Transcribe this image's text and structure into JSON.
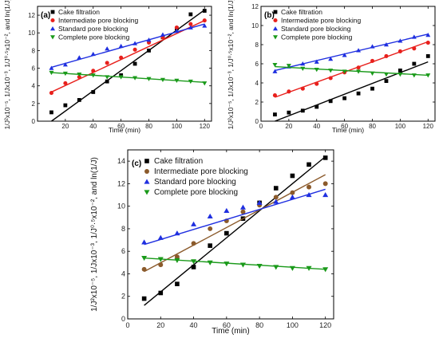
{
  "chart_data": [
    {
      "panel_label": "(a)",
      "type": "scatter",
      "xlabel": "Time (min)",
      "ylabel": "1/J²x10⁻⁵, 1/Jx10⁻³, 1/J⁰·⁵x10⁻², and ln(1/J)",
      "xlim": [
        0,
        125
      ],
      "ylim": [
        0,
        13
      ],
      "xticks": [
        "20",
        "40",
        "60",
        "80",
        "100",
        "120"
      ],
      "yticks": [
        "0",
        "2",
        "4",
        "6",
        "8",
        "10",
        "12"
      ],
      "x": [
        10,
        20,
        30,
        40,
        50,
        60,
        70,
        80,
        90,
        100,
        110,
        120
      ],
      "series": [
        {
          "name": "Cake filtration",
          "marker": "square",
          "color": "#000000",
          "values": [
            1.0,
            1.8,
            2.4,
            3.3,
            4.5,
            5.2,
            6.5,
            8.0,
            9.5,
            10.5,
            12.1,
            12.5
          ],
          "fit": [
            0.0,
            12.6
          ]
        },
        {
          "name": "Intermediate pore blocking",
          "marker": "circle",
          "color": "#e8201c",
          "values": [
            3.2,
            4.3,
            5.0,
            5.7,
            6.6,
            7.2,
            8.1,
            8.9,
            9.5,
            10.6,
            11.0,
            11.4
          ],
          "fit": [
            3.3,
            11.4
          ]
        },
        {
          "name": "Standard pore blocking",
          "marker": "triangle-up",
          "color": "#1f2fe0",
          "values": [
            6.0,
            6.4,
            7.2,
            7.6,
            8.2,
            8.5,
            8.8,
            9.2,
            9.8,
            10.2,
            10.6,
            10.8
          ],
          "fit": [
            6.1,
            11.0
          ]
        },
        {
          "name": "Complete pore blocking",
          "marker": "triangle-down",
          "color": "#1a9a1a",
          "values": [
            5.5,
            5.4,
            5.3,
            5.2,
            5.0,
            5.0,
            4.9,
            4.8,
            4.7,
            4.6,
            4.5,
            4.3
          ],
          "fit": [
            5.5,
            4.4
          ]
        }
      ]
    },
    {
      "panel_label": "(b)",
      "type": "scatter",
      "xlabel": "Time (min)",
      "ylabel": "1/J²x10⁻⁵, 1/Jx10⁻³, 1/J⁰·⁵x10⁻², and ln(1/J)",
      "xlim": [
        0,
        125
      ],
      "ylim": [
        0,
        12
      ],
      "xticks": [
        "0",
        "20",
        "40",
        "60",
        "80",
        "100",
        "120"
      ],
      "yticks": [
        "0",
        "2",
        "4",
        "6",
        "8",
        "10",
        "12"
      ],
      "x": [
        10,
        20,
        30,
        40,
        50,
        60,
        70,
        80,
        90,
        100,
        110,
        120
      ],
      "series": [
        {
          "name": "Cake filtration",
          "marker": "square",
          "color": "#000000",
          "values": [
            0.7,
            0.9,
            1.1,
            1.5,
            2.1,
            2.4,
            2.9,
            3.4,
            4.2,
            5.3,
            6.0,
            6.8
          ],
          "fit": [
            0.0,
            6.2
          ]
        },
        {
          "name": "Intermediate pore blocking",
          "marker": "circle",
          "color": "#e8201c",
          "values": [
            2.7,
            3.1,
            3.4,
            3.9,
            4.5,
            5.1,
            5.6,
            6.3,
            6.8,
            7.3,
            7.6,
            8.2
          ],
          "fit": [
            2.5,
            8.3
          ]
        },
        {
          "name": "Standard pore blocking",
          "marker": "triangle-up",
          "color": "#1f2fe0",
          "values": [
            5.2,
            5.7,
            6.0,
            6.2,
            6.5,
            6.9,
            7.4,
            7.8,
            8.0,
            8.4,
            8.8,
            9.0
          ],
          "fit": [
            5.3,
            9.1
          ]
        },
        {
          "name": "Complete pore blocking",
          "marker": "triangle-down",
          "color": "#1a9a1a",
          "values": [
            5.9,
            5.8,
            5.5,
            5.4,
            5.3,
            5.2,
            5.2,
            5.0,
            4.9,
            4.9,
            4.8,
            4.8
          ],
          "fit": [
            5.7,
            4.8
          ]
        }
      ]
    },
    {
      "panel_label": "(c)",
      "type": "scatter",
      "xlabel": "Time (min)",
      "ylabel": "1/J²x10⁻⁵, 1/Jx10⁻³, 1/J⁰·⁵x10⁻², and ln(1/J)",
      "xlim": [
        0,
        125
      ],
      "ylim": [
        0,
        15
      ],
      "xticks": [
        "0",
        "20",
        "40",
        "60",
        "80",
        "100",
        "120"
      ],
      "yticks": [
        "0",
        "2",
        "4",
        "6",
        "8",
        "10",
        "12",
        "14"
      ],
      "x": [
        10,
        20,
        30,
        40,
        50,
        60,
        70,
        80,
        90,
        100,
        110,
        120
      ],
      "series": [
        {
          "name": "Cake filtration",
          "marker": "square",
          "color": "#000000",
          "values": [
            1.8,
            2.3,
            3.1,
            4.6,
            6.5,
            7.6,
            8.9,
            10.3,
            11.6,
            12.7,
            13.7,
            14.3
          ],
          "fit": [
            1.2,
            14.4
          ]
        },
        {
          "name": "Intermediate pore blocking",
          "marker": "circle",
          "color": "#8b5a2b",
          "values": [
            4.4,
            4.8,
            5.5,
            6.7,
            8.0,
            8.7,
            9.5,
            10.1,
            10.8,
            11.2,
            11.7,
            12.0
          ],
          "fit": [
            4.2,
            12.8
          ]
        },
        {
          "name": "Standard pore blocking",
          "marker": "triangle-up",
          "color": "#1f2fe0",
          "values": [
            6.8,
            7.2,
            7.6,
            8.4,
            9.1,
            9.6,
            9.9,
            10.3,
            10.4,
            10.8,
            11.0,
            11.0
          ],
          "fit": [
            6.6,
            11.5
          ]
        },
        {
          "name": "Complete pore blocking",
          "marker": "triangle-down",
          "color": "#1a9a1a",
          "values": [
            5.4,
            5.3,
            5.2,
            5.1,
            5.0,
            4.9,
            4.8,
            4.7,
            4.6,
            4.5,
            4.5,
            4.4
          ],
          "fit": [
            5.4,
            4.4
          ]
        }
      ]
    }
  ]
}
